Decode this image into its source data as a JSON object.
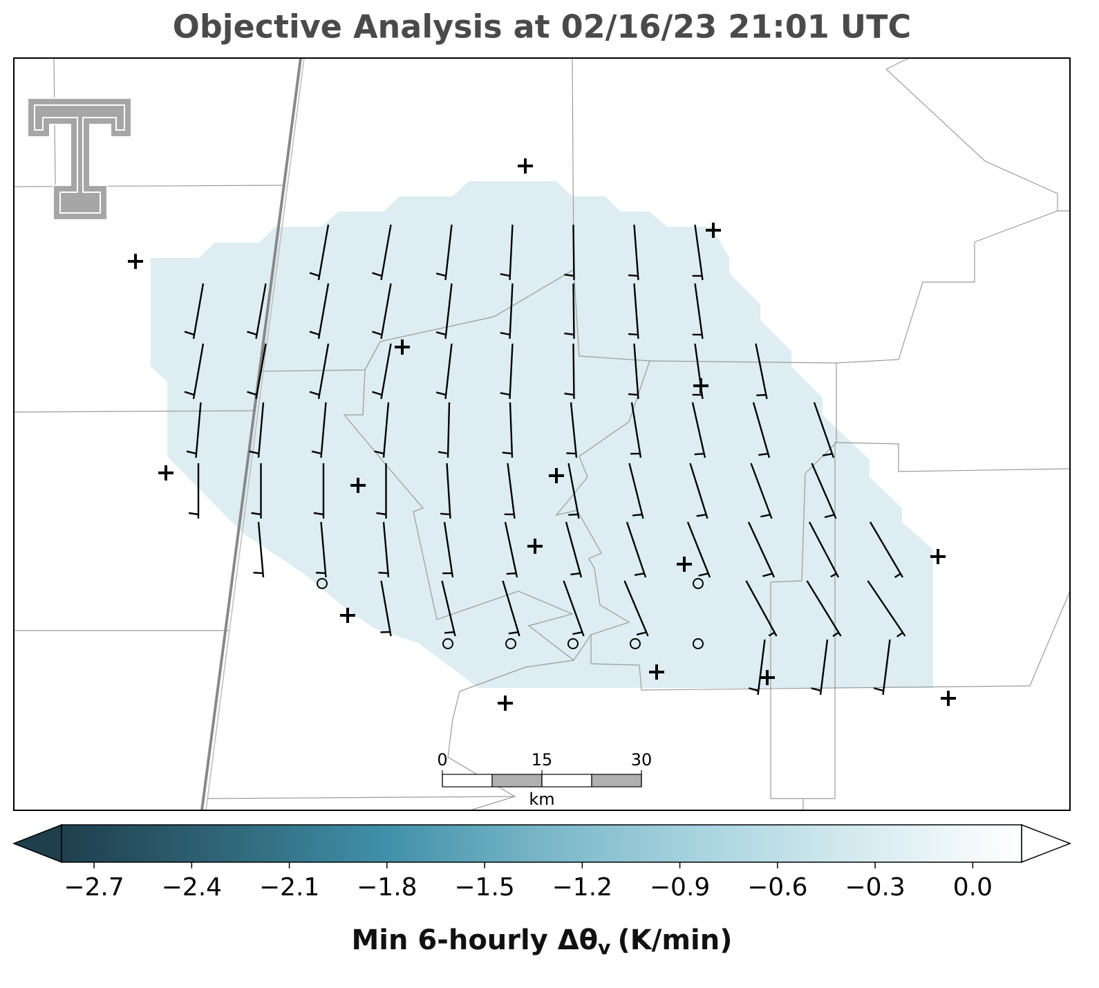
{
  "title": "Objective Analysis at 02/16/23 21:01 UTC",
  "colorbar": {
    "label": "Min 6-hourly Δθ",
    "label_sub": "v",
    "label_tail": "(K/min)",
    "lim": [
      -2.8,
      0.15
    ],
    "colors": [
      "#1f3f4d",
      "#2f6577",
      "#3f8fa8",
      "#78b6c7",
      "#a9d4e0",
      "#d6ebf0",
      "#ffffff"
    ],
    "ticks": [
      {
        "value": -2.7,
        "label": "−2.7"
      },
      {
        "value": -2.4,
        "label": "−2.4"
      },
      {
        "value": -2.1,
        "label": "−2.1"
      },
      {
        "value": -1.8,
        "label": "−1.8"
      },
      {
        "value": -1.5,
        "label": "−1.5"
      },
      {
        "value": -1.2,
        "label": "−1.2"
      },
      {
        "value": -0.9,
        "label": "−0.9"
      },
      {
        "value": -0.6,
        "label": "−0.6"
      },
      {
        "value": -0.3,
        "label": "−0.3"
      },
      {
        "value": 0.0,
        "label": "0.0"
      }
    ]
  },
  "scale_bar": {
    "lim": [
      0,
      30
    ],
    "ticks": [
      0,
      15,
      30
    ],
    "unit": "km"
  }
}
